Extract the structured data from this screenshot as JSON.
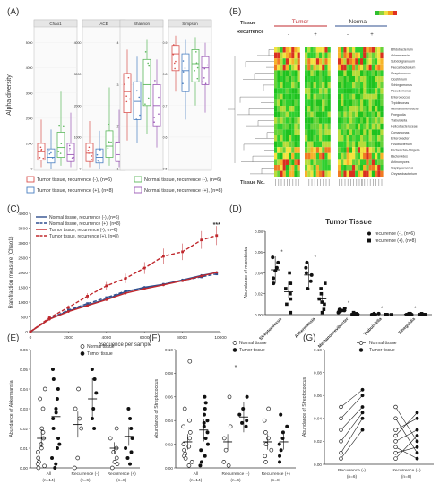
{
  "panel_labels": {
    "A": "(A)",
    "B": "(B)",
    "C": "(C)",
    "D": "(D)",
    "E": "(E)",
    "F": "(F)",
    "G": "(G)"
  },
  "colors": {
    "tumor_neg": "#d9534f",
    "tumor_pos": "#4a7fc1",
    "normal_neg": "#5cb85c",
    "normal_pos": "#9b59b6",
    "dark_blue": "#2f4f8f",
    "dark_red": "#c0282d"
  },
  "chart_data": [
    {
      "id": "A",
      "type": "box",
      "ylabel": "Alpha diversity",
      "facets": [
        "Chao1",
        "ACE",
        "Shannon",
        "Simpson"
      ],
      "groups": [
        "Tumor tissue, recurrence (-), (n=6)",
        "Tumor tissue, recurrence (+), (n=8)",
        "Normal tissue, recurrence (-), (n=6)",
        "Normal tissue, recurrence (+), (n=8)"
      ],
      "facet_ticks": [
        [
          "0",
          "1000",
          "2000",
          "3000",
          "4000",
          "5000"
        ],
        [
          "0",
          "1000",
          "2000",
          "3000",
          "4000"
        ],
        [
          "1",
          "2",
          "3",
          "4"
        ],
        [
          "0.5",
          "0.6",
          "0.7",
          "0.8",
          "0.9"
        ]
      ]
    },
    {
      "id": "B",
      "type": "heatmap",
      "tissue_label": "Tissue",
      "tumor_label": "Tumor",
      "normal_label": "Normal",
      "recurrence_label": "Recurrence",
      "neg": "-",
      "pos": "+",
      "tissue_no_label": "Tissue No.",
      "taxa": [
        "Bifidobacterium",
        "Akkermansia",
        "Subdoligranulum",
        "Faecalibacterium",
        "Streptococcus",
        "Clostridium",
        "Sphingomonas",
        "Pseudomonas",
        "Enterococcus",
        "Tepidimonas",
        "Methanobrevibacter",
        "Finegoldia",
        "Trabulsiella",
        "Helicobacteraceae",
        "Comamonas",
        "Enterobacter",
        "Fusobacterium",
        "Escherichia-Shigella",
        "Bacteroides",
        "Actinomyces",
        "Staphylococcus",
        "Chryseobacterium"
      ]
    },
    {
      "id": "C",
      "type": "line",
      "xlabel": "Sequence per sample",
      "ylabel": "Rarefraction measure (Chao1)",
      "x": [
        0,
        1000,
        2000,
        3000,
        4000,
        5000,
        6000,
        7000,
        8000,
        9000,
        10000
      ],
      "xticks": [
        "0",
        "2000",
        "4000",
        "6000",
        "8000",
        "10000"
      ],
      "yticks": [
        "0",
        "500",
        "1000",
        "1500",
        "2000",
        "2500",
        "3000",
        "3500",
        "4000"
      ],
      "ylim": [
        0,
        4000
      ],
      "sig": "***",
      "series": [
        {
          "name": "Normal tissue, recurrence (-), (n=6)",
          "style": "solid",
          "color": "#2f4f8f",
          "x": [
            0,
            1000,
            2000,
            3000,
            4000,
            5000,
            6000,
            7000,
            8000,
            9000,
            9800
          ],
          "values": [
            0,
            430,
            700,
            900,
            1100,
            1350,
            1500,
            1600,
            1750,
            1900,
            2000
          ]
        },
        {
          "name": "Normal tissue, recurrence (+), (n=8)",
          "style": "dashed",
          "color": "#2f4f8f",
          "x": [
            0,
            1000,
            2000,
            3000,
            4000,
            5000,
            6000,
            7000,
            8000,
            9000,
            9800
          ],
          "values": [
            0,
            440,
            730,
            950,
            1150,
            1370,
            1480,
            1600,
            1730,
            1850,
            1950
          ]
        },
        {
          "name": "Tumor tissue, recurrence (-), (n=6)",
          "style": "solid",
          "color": "#c0282d",
          "x": [
            0,
            1000,
            2000,
            3000,
            4000,
            5000,
            6000,
            7000,
            8000,
            9000,
            9800
          ],
          "values": [
            0,
            420,
            680,
            880,
            1080,
            1300,
            1450,
            1580,
            1720,
            1880,
            2000
          ]
        },
        {
          "name": "Tumor tissue, recurrence (+), (n=8)",
          "style": "dashed",
          "color": "#c0282d",
          "x": [
            0,
            1000,
            2000,
            3000,
            4000,
            5000,
            6000,
            7000,
            8000,
            9000,
            9800
          ],
          "values": [
            0,
            470,
            820,
            1200,
            1550,
            1800,
            2150,
            2550,
            2700,
            3100,
            3250
          ],
          "err": [
            0,
            40,
            70,
            100,
            130,
            160,
            200,
            260,
            280,
            300,
            320
          ]
        }
      ]
    },
    {
      "id": "D",
      "type": "scatter",
      "title": "Tumor Tissue",
      "ylabel": "Abundance of microbiota",
      "categories": [
        "Streptococcus",
        "Akkermansia",
        "Methanobrevibacter",
        "Trabulsiella",
        "Finegoldia"
      ],
      "yticks": [
        "0.00",
        "0.02",
        "0.04",
        "0.06",
        "0.08"
      ],
      "ylim": [
        0,
        0.08
      ],
      "series": [
        {
          "name": "recurrence (-), (n=6)",
          "marker": "circle",
          "means": [
            0.043,
            0.038,
            0.004,
            0.0005,
            0.0005
          ],
          "points": [
            [
              0.055,
              0.035,
              0.042,
              0.03,
              0.05,
              0.045
            ],
            [
              0.045,
              0.025,
              0.032,
              0.05,
              0.038,
              0.04
            ],
            [
              0.006,
              0.003,
              0.004,
              0.002,
              0.005,
              0.004
            ],
            [
              0,
              0.001,
              0,
              0,
              0.001,
              0
            ],
            [
              0,
              0.001,
              0,
              0,
              0,
              0.001
            ]
          ]
        },
        {
          "name": "recurrence (+), (n=8)",
          "marker": "square",
          "means": [
            0.022,
            0.015,
            0.0005,
            0.0001,
            0.0002
          ],
          "points": [
            [
              0.04,
              0.01,
              0.002,
              0.03,
              0.02,
              0.025,
              0.03,
              0.015
            ],
            [
              0.03,
              0.005,
              0.02,
              0.002,
              0.025,
              0.01,
              0.012,
              0.015
            ],
            [
              0,
              0.001,
              0,
              0,
              0.002,
              0,
              0,
              0.001
            ],
            [
              0,
              0,
              0,
              0,
              0,
              0,
              0,
              0
            ],
            [
              0,
              0,
              0,
              0,
              0,
              0,
              0,
              0.001
            ]
          ]
        }
      ],
      "sig": [
        "*",
        "*",
        "*",
        "*",
        "*"
      ]
    },
    {
      "id": "E",
      "type": "scatter",
      "ylabel": "Abundance of Akkermansia",
      "categories": [
        "All\n(n=14)",
        "Recurrence (-)\n(n=6)",
        "Recurrence (+)\n(n=8)"
      ],
      "yticks": [
        "0.00",
        "0.01",
        "0.02",
        "0.03",
        "0.04",
        "0.05",
        "0.06"
      ],
      "ylim": [
        0,
        0.06
      ],
      "series": [
        {
          "name": "Normal tissue",
          "marker": "open",
          "means": [
            0.015,
            0.022,
            0.01
          ],
          "points": [
            [
              0.04,
              0.035,
              0.03,
              0.02,
              0.018,
              0.015,
              0.012,
              0.01,
              0.008,
              0.005,
              0.003,
              0.002,
              0.001,
              0
            ],
            [
              0.04,
              0.03,
              0.025,
              0.02,
              0.005,
              0
            ],
            [
              0.02,
              0.015,
              0.01,
              0.008,
              0.005,
              0.003,
              0.002,
              0
            ]
          ]
        },
        {
          "name": "Tumor tissue",
          "marker": "filled",
          "means": [
            0.026,
            0.035,
            0.016
          ],
          "points": [
            [
              0.05,
              0.045,
              0.04,
              0.035,
              0.03,
              0.028,
              0.025,
              0.02,
              0.015,
              0.012,
              0.01,
              0.005,
              0.002,
              0
            ],
            [
              0.05,
              0.045,
              0.038,
              0.03,
              0.025,
              0.02
            ],
            [
              0.03,
              0.025,
              0.02,
              0.015,
              0.01,
              0.008,
              0.005,
              0.002
            ]
          ]
        }
      ]
    },
    {
      "id": "F",
      "type": "scatter",
      "ylabel": "Abundance of Streptococcus",
      "categories": [
        "All\n(n=14)",
        "Recurrence (-)\n(n=6)",
        "Recurrence (+)\n(n=8)"
      ],
      "yticks": [
        "0.00",
        "0.02",
        "0.04",
        "0.06",
        "0.08",
        "0.10"
      ],
      "ylim": [
        0,
        0.1
      ],
      "series": [
        {
          "name": "Normal tissue",
          "marker": "open",
          "means": [
            0.022,
            0.022,
            0.022
          ],
          "points": [
            [
              0.09,
              0.05,
              0.04,
              0.035,
              0.03,
              0.025,
              0.02,
              0.018,
              0.015,
              0.012,
              0.01,
              0.008,
              0.005,
              0.002
            ],
            [
              0.06,
              0.035,
              0.025,
              0.015,
              0.005,
              0.002
            ],
            [
              0.05,
              0.04,
              0.03,
              0.025,
              0.02,
              0.015,
              0.01,
              0.005
            ]
          ]
        },
        {
          "name": "Tumor tissue",
          "marker": "filled",
          "means": [
            0.032,
            0.043,
            0.022
          ],
          "points": [
            [
              0.06,
              0.055,
              0.05,
              0.045,
              0.04,
              0.038,
              0.035,
              0.03,
              0.025,
              0.02,
              0.015,
              0.01,
              0.005,
              0.002
            ],
            [
              0.06,
              0.05,
              0.045,
              0.04,
              0.038,
              0.035
            ],
            [
              0.045,
              0.035,
              0.03,
              0.025,
              0.02,
              0.015,
              0.01,
              0.005
            ]
          ]
        }
      ],
      "sig": "*"
    },
    {
      "id": "G",
      "type": "paired",
      "ylabel": "Abundance of Streptococcus",
      "categories": [
        "Recurrence (-)\n(n=6)",
        "Recurrence (+)\n(n=8)"
      ],
      "yticks": [
        "0.00",
        "0.02",
        "0.04",
        "0.06",
        "0.08",
        "0.10"
      ],
      "ylim": [
        0,
        0.1
      ],
      "series": [
        {
          "name": "Normal tissue",
          "marker": "open"
        },
        {
          "name": "Tumor tissue",
          "marker": "filled"
        }
      ],
      "pairs": [
        [
          [
            0.04,
            0.06
          ],
          [
            0.03,
            0.05
          ],
          [
            0.02,
            0.045
          ],
          [
            0.01,
            0.04
          ],
          [
            0.05,
            0.065
          ],
          [
            0.005,
            0.03
          ]
        ],
        [
          [
            0.05,
            0.02
          ],
          [
            0.03,
            0.04
          ],
          [
            0.02,
            0.03
          ],
          [
            0.01,
            0.015
          ],
          [
            0.04,
            0.01
          ],
          [
            0.005,
            0.025
          ],
          [
            0.015,
            0.005
          ],
          [
            0.025,
            0.045
          ]
        ]
      ]
    }
  ]
}
